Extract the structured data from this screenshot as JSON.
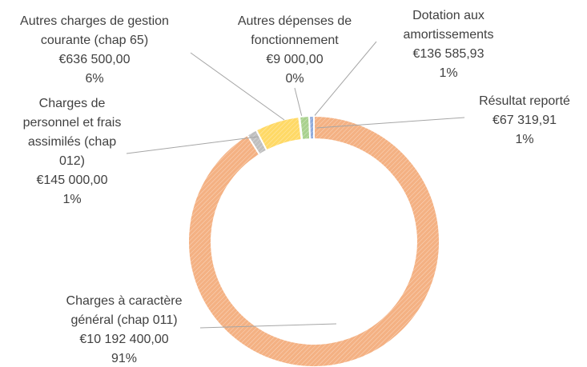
{
  "chart_data": {
    "type": "donut",
    "categories": [
      "Charges à caractère général  (chap 011)",
      "Charges de personnel et frais assimilés (chap 012)",
      "Autres charges de gestion courante (chap 65)",
      "Autres dépenses de fonctionnement",
      "Dotation aux amortissements",
      "Résultat reporté"
    ],
    "values": [
      10192400,
      145000,
      636500,
      9000,
      136585.93,
      67319.91
    ],
    "value_labels": [
      "€10 192 400,00",
      "€145 000,00",
      "€636 500,00",
      "€9 000,00",
      "€136 585,93",
      "€67 319,91"
    ],
    "percents": [
      91,
      1,
      6,
      0,
      1,
      1
    ],
    "percent_labels": [
      "91%",
      "1%",
      "6%",
      "0%",
      "1%",
      "1%"
    ],
    "colors": [
      "#f4b183",
      "#bfbfbf",
      "#ffd966",
      "#e7e6e6",
      "#a9d18e",
      "#8faadc"
    ]
  }
}
